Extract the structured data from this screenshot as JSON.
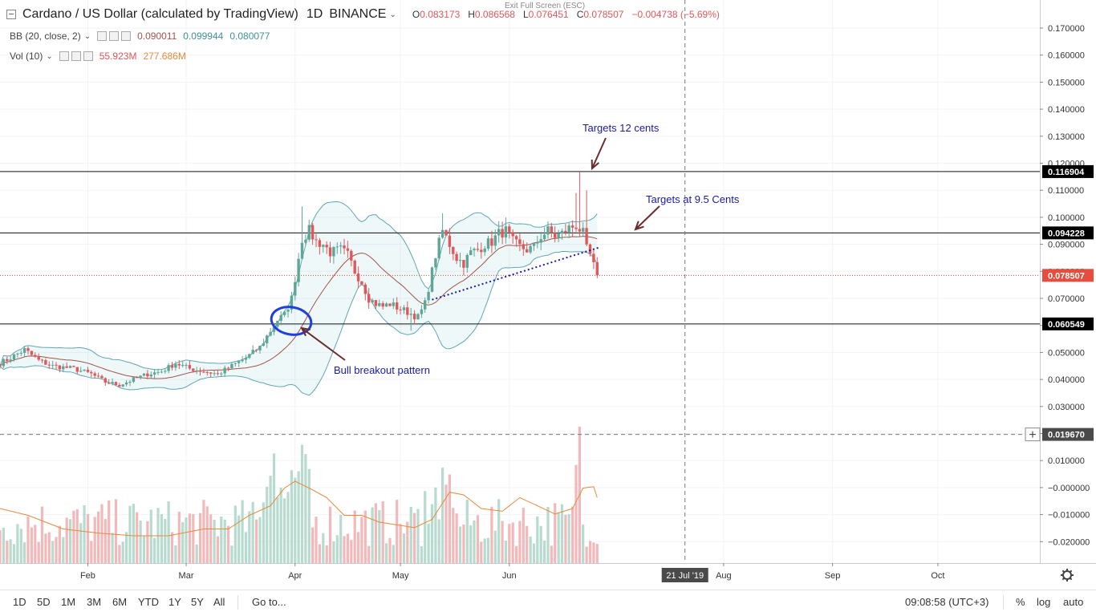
{
  "header": {
    "title": "Cardano / US Dollar (calculated by TradingView)",
    "interval": "1D",
    "exchange": "BINANCE",
    "ohlc": {
      "open_label": "O",
      "open": "0.083173",
      "high_label": "H",
      "high": "0.086568",
      "low_label": "L",
      "low": "0.076451",
      "close_label": "C",
      "close": "0.078507",
      "change": "−0.004738 (−5.69%)"
    },
    "exit_fullscreen": "Exit Full Screen (ESC)"
  },
  "indicators": {
    "bb": {
      "label": "BB (20, close, 2)",
      "middle": "0.090011",
      "upper": "0.099944",
      "lower": "0.080077"
    },
    "vol": {
      "label": "Vol (10)",
      "value": "55.923M",
      "ma": "277.686M"
    }
  },
  "annotations": {
    "targets_12": "Targets 12 cents",
    "targets_95": "Targets at 9.5 Cents",
    "bull_breakout": "Bull breakout pattern"
  },
  "price_labels": {
    "resistance_high": "0.116904",
    "resistance_mid": "0.094228",
    "last_price": "0.078507",
    "support": "0.060549",
    "crosshair": "0.019670"
  },
  "time_labels": {
    "crosshair_date": "21 Jul '19"
  },
  "bottom_bar": {
    "timeframes": [
      "1D",
      "5D",
      "1M",
      "3M",
      "6M",
      "YTD",
      "1Y",
      "5Y",
      "All"
    ],
    "goto": "Go to...",
    "clock": "09:08:58 (UTC+3)",
    "percent": "%",
    "log": "log",
    "auto": "auto"
  },
  "colors": {
    "up": "#5fa697",
    "down": "#e0585a",
    "vol_up": "#b7dbcf",
    "vol_down": "#f2b8ba",
    "bb_band": "#5ea7b6",
    "bb_basis": "#a4524a",
    "vol_ma": "#e8893a",
    "annotation": "#1a1aa6",
    "arrow": "#6b2c2c",
    "last_price": "#e74c3c"
  },
  "chart_data": {
    "type": "candlestick",
    "title": "Cardano / US Dollar (calculated by TradingView)",
    "interval": "1D",
    "y_axis": {
      "ticks": [
        "0.170000",
        "0.160000",
        "0.150000",
        "0.140000",
        "0.130000",
        "0.120000",
        "0.110000",
        "0.100000",
        "0.090000",
        "0.080000",
        "0.070000",
        "0.060000",
        "0.050000",
        "0.040000",
        "0.030000",
        "0.020000",
        "0.010000",
        "−0.000000",
        "−0.010000",
        "−0.020000"
      ],
      "range": [
        -0.026,
        0.177
      ]
    },
    "x_axis": {
      "ticks": [
        "Feb",
        "Mar",
        "Apr",
        "May",
        "Jun",
        "Aug",
        "Sep",
        "Oct"
      ],
      "tick_days": [
        32,
        60,
        91,
        121,
        152,
        213,
        244,
        274
      ],
      "range_days": [
        7,
        296
      ],
      "crosshair_day": 202
    },
    "horizontal_lines": [
      0.116904,
      0.094228,
      0.060549
    ],
    "last_price": 0.078507,
    "crosshair_price": 0.01967,
    "waypoints": [
      [
        7,
        0.046
      ],
      [
        10,
        0.048
      ],
      [
        14,
        0.051
      ],
      [
        18,
        0.047
      ],
      [
        22,
        0.045
      ],
      [
        28,
        0.044
      ],
      [
        33,
        0.042
      ],
      [
        37,
        0.039
      ],
      [
        41,
        0.038
      ],
      [
        45,
        0.04
      ],
      [
        49,
        0.042
      ],
      [
        53,
        0.043
      ],
      [
        57,
        0.046
      ],
      [
        61,
        0.044
      ],
      [
        65,
        0.043
      ],
      [
        69,
        0.042
      ],
      [
        73,
        0.045
      ],
      [
        77,
        0.048
      ],
      [
        81,
        0.052
      ],
      [
        84,
        0.058
      ],
      [
        86,
        0.062
      ],
      [
        88,
        0.064
      ],
      [
        90,
        0.07
      ],
      [
        92,
        0.085
      ],
      [
        93,
        0.092
      ],
      [
        95,
        0.095
      ],
      [
        97,
        0.091
      ],
      [
        99,
        0.09
      ],
      [
        101,
        0.087
      ],
      [
        104,
        0.088
      ],
      [
        106,
        0.086
      ],
      [
        108,
        0.08
      ],
      [
        110,
        0.076
      ],
      [
        112,
        0.07
      ],
      [
        114,
        0.068
      ],
      [
        116,
        0.067
      ],
      [
        118,
        0.068
      ],
      [
        121,
        0.066
      ],
      [
        123,
        0.065
      ],
      [
        126,
        0.063
      ],
      [
        128,
        0.068
      ],
      [
        130,
        0.08
      ],
      [
        131,
        0.086
      ],
      [
        133,
        0.095
      ],
      [
        135,
        0.09
      ],
      [
        137,
        0.085
      ],
      [
        139,
        0.083
      ],
      [
        141,
        0.087
      ],
      [
        143,
        0.088
      ],
      [
        145,
        0.09
      ],
      [
        147,
        0.091
      ],
      [
        149,
        0.094
      ],
      [
        151,
        0.095
      ],
      [
        153,
        0.091
      ],
      [
        155,
        0.089
      ],
      [
        157,
        0.088
      ],
      [
        159,
        0.089
      ],
      [
        161,
        0.093
      ],
      [
        163,
        0.095
      ],
      [
        165,
        0.093
      ],
      [
        167,
        0.094
      ],
      [
        169,
        0.096
      ],
      [
        171,
        0.097
      ],
      [
        173,
        0.094
      ],
      [
        174,
        0.088
      ],
      [
        175,
        0.086
      ],
      [
        176,
        0.082
      ],
      [
        177,
        0.0785
      ]
    ],
    "volume_ma_points": [
      [
        7,
        0.4
      ],
      [
        15,
        0.35
      ],
      [
        25,
        0.25
      ],
      [
        35,
        0.22
      ],
      [
        45,
        0.2
      ],
      [
        55,
        0.2
      ],
      [
        65,
        0.25
      ],
      [
        72,
        0.25
      ],
      [
        78,
        0.35
      ],
      [
        84,
        0.42
      ],
      [
        88,
        0.55
      ],
      [
        91,
        0.6
      ],
      [
        95,
        0.55
      ],
      [
        100,
        0.48
      ],
      [
        105,
        0.35
      ],
      [
        110,
        0.35
      ],
      [
        115,
        0.3
      ],
      [
        120,
        0.28
      ],
      [
        125,
        0.26
      ],
      [
        130,
        0.32
      ],
      [
        135,
        0.52
      ],
      [
        139,
        0.5
      ],
      [
        144,
        0.4
      ],
      [
        150,
        0.38
      ],
      [
        155,
        0.48
      ],
      [
        160,
        0.42
      ],
      [
        165,
        0.36
      ],
      [
        170,
        0.4
      ],
      [
        173,
        0.55
      ],
      [
        176,
        0.56
      ],
      [
        177,
        0.48
      ]
    ]
  }
}
